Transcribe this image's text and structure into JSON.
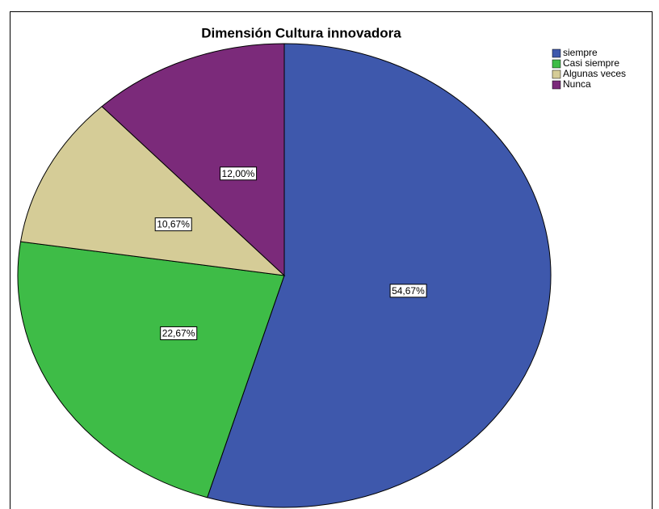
{
  "chart_data": {
    "type": "pie",
    "title": "Dimensión Cultura innovadora",
    "categories": [
      "siempre",
      "Casi siempre",
      "Algunas veces",
      "Nunca"
    ],
    "values": [
      54.67,
      22.67,
      10.67,
      12.0
    ],
    "value_labels": [
      "54,67%",
      "22,67%",
      "10,67%",
      "12,00%"
    ],
    "colors": [
      "#3e58ac",
      "#3ebc47",
      "#d5cc97",
      "#7b2a7a"
    ],
    "legend": "top-right"
  }
}
